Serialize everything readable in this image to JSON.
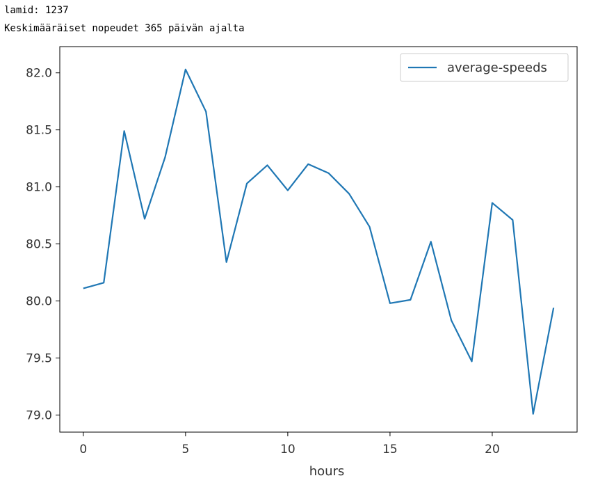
{
  "output": {
    "line1": "lamid: 1237",
    "line2": "Keskimääräiset nopeudet 365 päivän ajalta"
  },
  "colors": {
    "series": "#1f77b4",
    "axis": "#000000",
    "text": "#333333",
    "legend_border": "#cccccc"
  },
  "chart_data": {
    "type": "line",
    "title": "",
    "xlabel": "hours",
    "ylabel": "",
    "xlim": [
      -1.15,
      24.15
    ],
    "ylim": [
      78.85,
      82.23
    ],
    "xticks": [
      0,
      5,
      10,
      15,
      20
    ],
    "xtick_labels": [
      "0",
      "5",
      "10",
      "15",
      "20"
    ],
    "yticks": [
      79.0,
      79.5,
      80.0,
      80.5,
      81.0,
      81.5,
      82.0
    ],
    "ytick_labels": [
      "79.0",
      "79.5",
      "80.0",
      "80.5",
      "81.0",
      "81.5",
      "82.0"
    ],
    "grid": false,
    "legend_position": "top-right",
    "series": [
      {
        "name": "average-speeds",
        "x": [
          0,
          1,
          2,
          3,
          4,
          5,
          6,
          7,
          8,
          9,
          10,
          11,
          12,
          13,
          14,
          15,
          16,
          17,
          18,
          19,
          20,
          21,
          22,
          23
        ],
        "values": [
          80.11,
          80.16,
          81.49,
          80.72,
          81.26,
          82.03,
          81.66,
          80.34,
          81.03,
          81.19,
          80.97,
          81.2,
          81.12,
          80.94,
          80.65,
          79.98,
          80.01,
          80.52,
          79.83,
          79.47,
          80.86,
          80.71,
          79.01,
          79.94
        ]
      }
    ]
  }
}
